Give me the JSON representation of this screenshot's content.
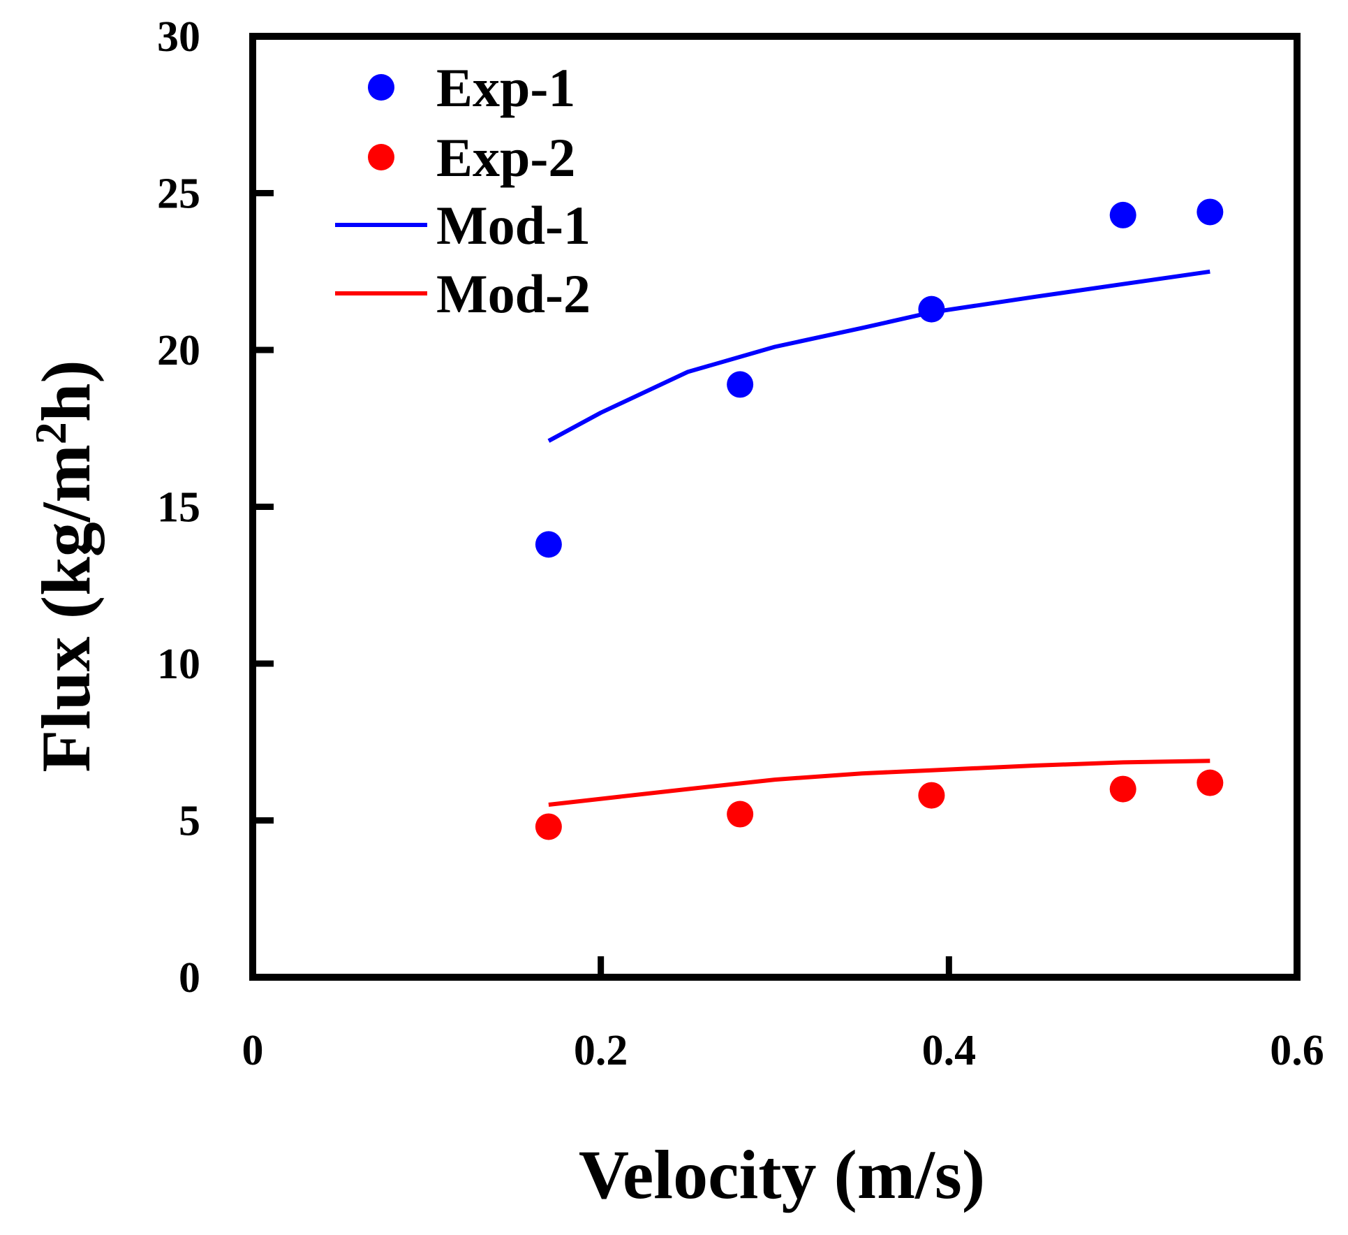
{
  "chart_data": {
    "type": "scatter",
    "title": "",
    "xlabel": "Velocity (m/s)",
    "ylabel_parts": {
      "before": "Flux (kg/m",
      "superscript": "2",
      "after": "h)"
    },
    "xlim": [
      0,
      0.6
    ],
    "ylim": [
      0,
      30
    ],
    "x_ticks": [
      {
        "value": 0,
        "label": "0"
      },
      {
        "value": 0.2,
        "label": "0.2"
      },
      {
        "value": 0.4,
        "label": "0.4"
      },
      {
        "value": 0.6,
        "label": "0.6"
      }
    ],
    "y_ticks": [
      {
        "value": 0,
        "label": "0"
      },
      {
        "value": 5,
        "label": "5"
      },
      {
        "value": 10,
        "label": "10"
      },
      {
        "value": 15,
        "label": "15"
      },
      {
        "value": 20,
        "label": "20"
      },
      {
        "value": 25,
        "label": "25"
      },
      {
        "value": 30,
        "label": "30"
      }
    ],
    "grid": false,
    "legend_position": "top-left",
    "series": [
      {
        "name": "Exp-1",
        "kind": "markers",
        "color": "#0000ff",
        "points": [
          [
            0.17,
            13.8
          ],
          [
            0.28,
            18.9
          ],
          [
            0.39,
            21.3
          ],
          [
            0.5,
            24.3
          ],
          [
            0.55,
            24.4
          ]
        ]
      },
      {
        "name": "Exp-2",
        "kind": "markers",
        "color": "#ff0000",
        "points": [
          [
            0.17,
            4.8
          ],
          [
            0.28,
            5.2
          ],
          [
            0.39,
            5.8
          ],
          [
            0.5,
            6.0
          ],
          [
            0.55,
            6.2
          ]
        ]
      },
      {
        "name": "Mod-1",
        "kind": "line",
        "color": "#0000ff",
        "points": [
          [
            0.17,
            17.1
          ],
          [
            0.2,
            18.0
          ],
          [
            0.25,
            19.3
          ],
          [
            0.3,
            20.1
          ],
          [
            0.35,
            20.7
          ],
          [
            0.39,
            21.2
          ],
          [
            0.45,
            21.7
          ],
          [
            0.5,
            22.1
          ],
          [
            0.55,
            22.5
          ]
        ]
      },
      {
        "name": "Mod-2",
        "kind": "line",
        "color": "#ff0000",
        "points": [
          [
            0.17,
            5.5
          ],
          [
            0.25,
            6.0
          ],
          [
            0.3,
            6.3
          ],
          [
            0.35,
            6.5
          ],
          [
            0.39,
            6.6
          ],
          [
            0.45,
            6.75
          ],
          [
            0.5,
            6.85
          ],
          [
            0.55,
            6.9
          ]
        ]
      }
    ]
  }
}
